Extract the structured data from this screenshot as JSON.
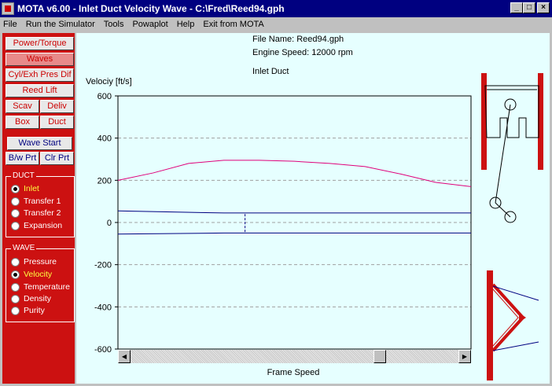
{
  "window": {
    "title": "MOTA v6.00 - Inlet Duct Velocity Wave - C:\\Fred\\Reed94.gph",
    "buttons": {
      "minimize": "_",
      "maximize": "□",
      "close": "×"
    }
  },
  "menu": [
    "File",
    "Run the Simulator",
    "Tools",
    "Powaplot",
    "Help",
    "Exit from MOTA"
  ],
  "sidebar": {
    "buttons": {
      "power_torque": "Power/Torque",
      "waves": "Waves",
      "cyl_exh": "Cyl/Exh Pres Dif",
      "reed_lift": "Reed Lift",
      "scav": "Scav",
      "deliv": "Deliv",
      "box": "Box",
      "duct": "Duct",
      "wave_start": "Wave Start",
      "bw_prt": "B/w Prt",
      "clr_prt": "Clr Prt"
    },
    "duct_group": {
      "title": "DUCT",
      "options": [
        "Inlet",
        "Transfer 1",
        "Transfer 2",
        "Expansion"
      ],
      "selected": "Inlet"
    },
    "wave_group": {
      "title": "WAVE",
      "options": [
        "Pressure",
        "Velocity",
        "Temperature",
        "Density",
        "Purity"
      ],
      "selected": "Velocity"
    }
  },
  "header": {
    "file_name": "File Name: Reed94.gph",
    "engine_speed": "Engine Speed:  12000 rpm",
    "duct_label": "Inlet Duct"
  },
  "colors": {
    "sidebar": "#cc1111",
    "plot_bg": "#e6ffff",
    "velocity_curve": "#e0007a",
    "boundary_lines": "#000080",
    "engine_red": "#cc1111"
  },
  "chart_data": {
    "type": "line",
    "title": "",
    "xlabel": "Frame Speed",
    "ylabel": "Velociy [ft/s]",
    "ylim": [
      -600,
      600
    ],
    "yticks": [
      600,
      400,
      200,
      0,
      -200,
      -400,
      -600
    ],
    "grid": true,
    "x_domain": [
      0,
      100
    ],
    "series": [
      {
        "color": "#e0007a",
        "x": [
          0,
          10,
          20,
          30,
          40,
          50,
          60,
          70,
          80,
          90,
          100
        ],
        "y": [
          200,
          235,
          280,
          295,
          295,
          290,
          280,
          265,
          230,
          190,
          170
        ]
      },
      {
        "color": "#000080",
        "x": [
          0,
          30,
          60,
          100
        ],
        "y": [
          55,
          45,
          45,
          45
        ]
      },
      {
        "color": "#000080",
        "x": [
          0,
          30,
          60,
          100
        ],
        "y": [
          -55,
          -50,
          -50,
          -50
        ]
      }
    ],
    "marker": {
      "x": 36,
      "y_from": -45,
      "y_to": 40,
      "style": "dashed"
    }
  }
}
